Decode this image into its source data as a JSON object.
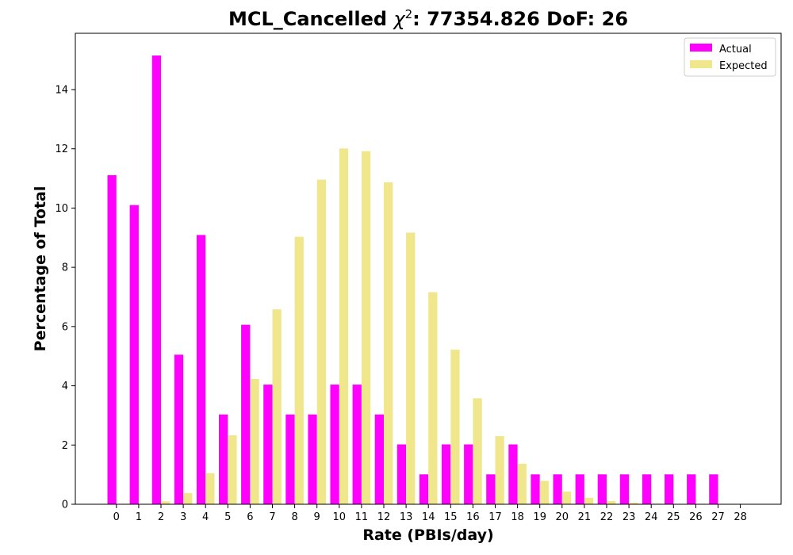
{
  "chart_data": {
    "type": "bar",
    "title_main": "MCL_Cancelled ",
    "title_chi": "χ",
    "title_exp": "2",
    "title_rest": ": 77354.826 DoF: 26",
    "xlabel": "Rate (PBIs/day)",
    "ylabel": "Percentage of Total",
    "ylim": [
      0,
      15.9
    ],
    "yticks": [
      0,
      2,
      4,
      6,
      8,
      10,
      12,
      14
    ],
    "categories": [
      "0",
      "1",
      "2",
      "3",
      "4",
      "5",
      "6",
      "7",
      "8",
      "9",
      "10",
      "11",
      "12",
      "13",
      "14",
      "15",
      "16",
      "17",
      "18",
      "19",
      "20",
      "21",
      "22",
      "23",
      "24",
      "25",
      "26",
      "27",
      "28"
    ],
    "legend_position": "top-right",
    "grid": false,
    "series": [
      {
        "name": "Actual",
        "color": "#ff00ff",
        "values": [
          11.11,
          10.1,
          15.15,
          5.05,
          9.09,
          3.03,
          6.06,
          4.04,
          3.03,
          3.03,
          4.04,
          4.04,
          3.03,
          2.02,
          1.01,
          2.02,
          2.02,
          1.01,
          2.02,
          1.01,
          1.01,
          1.01,
          1.01,
          1.01,
          1.01,
          1.01,
          1.01,
          1.01,
          0
        ]
      },
      {
        "name": "Expected",
        "color": "#f0e68c",
        "values": [
          0.0,
          0.01,
          0.1,
          0.38,
          1.05,
          2.33,
          4.23,
          6.58,
          9.03,
          10.96,
          12.01,
          11.92,
          10.87,
          9.17,
          7.16,
          5.22,
          3.58,
          2.3,
          1.37,
          0.79,
          0.43,
          0.22,
          0.11,
          0.05,
          0.02,
          0.01,
          0.0,
          0.0,
          0.0
        ]
      }
    ]
  }
}
